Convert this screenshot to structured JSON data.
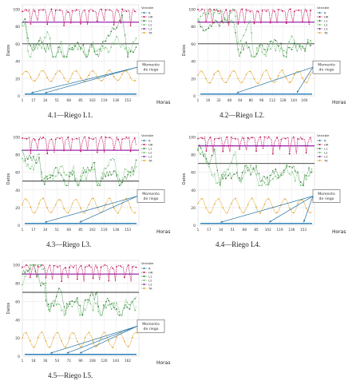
{
  "chart_data": [
    {
      "type": "line",
      "caption": "4.1—Riego  L1.",
      "ylabel": "Datos",
      "xlabel": "Horas",
      "x_ticks": [
        "1",
        "17",
        "34",
        "51",
        "68",
        "85",
        "102",
        "119",
        "136",
        "153"
      ],
      "y_ticks": [
        "0",
        "20",
        "40",
        "60",
        "80",
        "100"
      ],
      "ylim": [
        0,
        105
      ],
      "legend_title": "Variable",
      "legend": [
        "R",
        "HR",
        "L1",
        "L2",
        "L3",
        "TA"
      ],
      "annotation": "Momento\nde riego",
      "reference_lines": {
        "upper": 85,
        "lower": 60
      },
      "riego_hours": [
        10,
        30
      ],
      "series": {
        "TA_base": 23,
        "TA_amp": 6,
        "dry_at": [
          10,
          46,
          62,
          92,
          108,
          150
        ]
      }
    },
    {
      "type": "line",
      "caption": "4.2—Riego  L2.",
      "ylabel": "Datos",
      "xlabel": "Horas",
      "x_ticks": [
        "1",
        "16",
        "32",
        "48",
        "64",
        "80",
        "96",
        "112",
        "128",
        "144",
        "160"
      ],
      "y_ticks": [
        "0",
        "20",
        "40",
        "60",
        "80",
        "100"
      ],
      "ylim": [
        0,
        105
      ],
      "legend_title": "Variable",
      "legend": [
        "R",
        "HR",
        "L1",
        "L2",
        "L3",
        "TA"
      ],
      "annotation": "Momento\nde riego",
      "reference_lines": {
        "upper": 85,
        "lower": 60
      },
      "riego_hours": [
        55,
        145
      ],
      "series": {
        "TA_base": 22,
        "TA_amp": 7,
        "dry_at": [
          60,
          84,
          100,
          130
        ]
      }
    },
    {
      "type": "line",
      "caption": "4.3—Riego  L3.",
      "ylabel": "Datos",
      "xlabel": "Horas",
      "x_ticks": [
        "1",
        "17",
        "34",
        "51",
        "68",
        "85",
        "102",
        "119",
        "136",
        "153"
      ],
      "y_ticks": [
        "0",
        "20",
        "40",
        "60",
        "80",
        "100"
      ],
      "ylim": [
        0,
        105
      ],
      "legend_title": "Variable",
      "legend": [
        "R",
        "HR",
        "L1",
        "L2",
        "L3",
        "TA"
      ],
      "annotation": "Momento\nde riego",
      "reference_lines": {
        "upper": 85,
        "lower": 50
      },
      "riego_hours": [
        30,
        80
      ],
      "series": {
        "TA_base": 22,
        "TA_amp": 8,
        "dry_at": [
          30,
          64,
          80,
          110,
          140
        ]
      }
    },
    {
      "type": "line",
      "caption": "4.4—Riego  L4.",
      "ylabel": "Datos",
      "xlabel": "Horas",
      "x_ticks": [
        "1",
        "17",
        "34",
        "51",
        "68",
        "85",
        "102",
        "119",
        "136",
        "153"
      ],
      "y_ticks": [
        "0",
        "20",
        "40",
        "60",
        "80",
        "100"
      ],
      "ylim": [
        0,
        105
      ],
      "legend_title": "Variable",
      "legend": [
        "R",
        "HR",
        "L1",
        "L2",
        "L3",
        "TA"
      ],
      "annotation": "Momento\nde riego",
      "reference_lines": {
        "upper": 90,
        "lower": 70
      },
      "riego_hours": [
        30,
        100,
        150
      ],
      "series": {
        "TA_base": 22,
        "TA_amp": 8,
        "dry_at": [
          30,
          60,
          90,
          100,
          150
        ]
      }
    },
    {
      "type": "line",
      "caption": "4.5—Riego  L5.",
      "ylabel": "Datos",
      "xlabel": "Horas",
      "x_ticks": [
        "1",
        "18",
        "36",
        "54",
        "72",
        "90",
        "108",
        "126",
        "144",
        "162"
      ],
      "y_ticks": [
        "0",
        "20",
        "40",
        "60",
        "80",
        "100"
      ],
      "ylim": [
        0,
        105
      ],
      "legend_title": "Variable",
      "legend": [
        "R",
        "HR",
        "L1",
        "L2",
        "L3",
        "TA"
      ],
      "annotation": "Momento\nde riego",
      "reference_lines": {
        "upper": 90,
        "lower": 70
      },
      "riego_hours": [
        40,
        65,
        85
      ],
      "series": {
        "TA_base": 18,
        "TA_amp": 8,
        "dry_at": [
          40,
          65,
          90,
          120,
          150
        ]
      }
    }
  ],
  "colors": {
    "R": "#1f77b4",
    "HR": "#c2185b",
    "L1": "#2e7d32",
    "L2": "#66bb6a",
    "L3": "#7b1fa2",
    "TA": "#e0a020",
    "upper_line": "#9c27b0",
    "lower_line": "#333333",
    "arrow": "#1f6fa0",
    "grid": "#e3e3e3"
  }
}
